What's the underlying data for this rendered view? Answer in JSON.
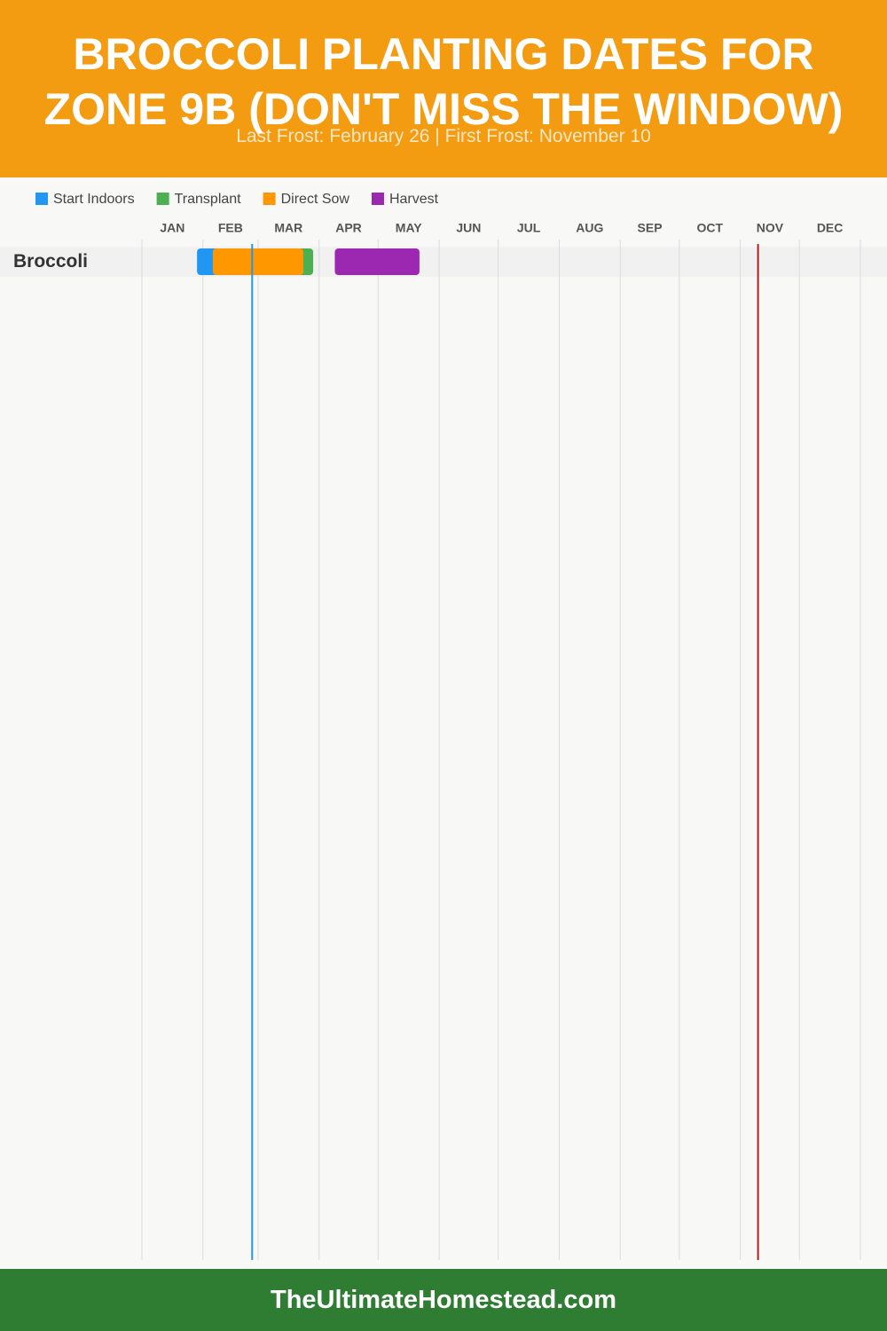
{
  "chart_data": {
    "type": "gantt",
    "title": "BROCCOLI PLANTING DATES FOR ZONE 9B (DON'T MISS THE WINDOW)",
    "subtitle": "Last Frost: February 26 | First Frost: November 10",
    "footer": "TheUltimateHomestead.com",
    "months": [
      "JAN",
      "FEB",
      "MAR",
      "APR",
      "MAY",
      "JUN",
      "JUL",
      "AUG",
      "SEP",
      "OCT",
      "NOV",
      "DEC"
    ],
    "xlim": [
      0,
      365
    ],
    "xticks": [
      0,
      31,
      59,
      90,
      120,
      151,
      181,
      212,
      243,
      273,
      304,
      334,
      365
    ],
    "rows": [
      "Broccoli"
    ],
    "series": [
      {
        "name": "Start Indoors",
        "color": "#2196f3",
        "values": [
          [
            28,
            50
          ]
        ]
      },
      {
        "name": "Transplant",
        "color": "#4caf50",
        "values": [
          [
            60,
            87
          ]
        ]
      },
      {
        "name": "Direct Sow",
        "color": "#ff9800",
        "values": [
          [
            36,
            82
          ]
        ]
      },
      {
        "name": "Harvest",
        "color": "#9c27b0",
        "values": [
          [
            98,
            141
          ]
        ]
      }
    ],
    "frost_lines": [
      {
        "value": 56,
        "color": "#2196f3"
      },
      {
        "value": 313,
        "color": "#b71c1c"
      }
    ],
    "grid": true
  }
}
